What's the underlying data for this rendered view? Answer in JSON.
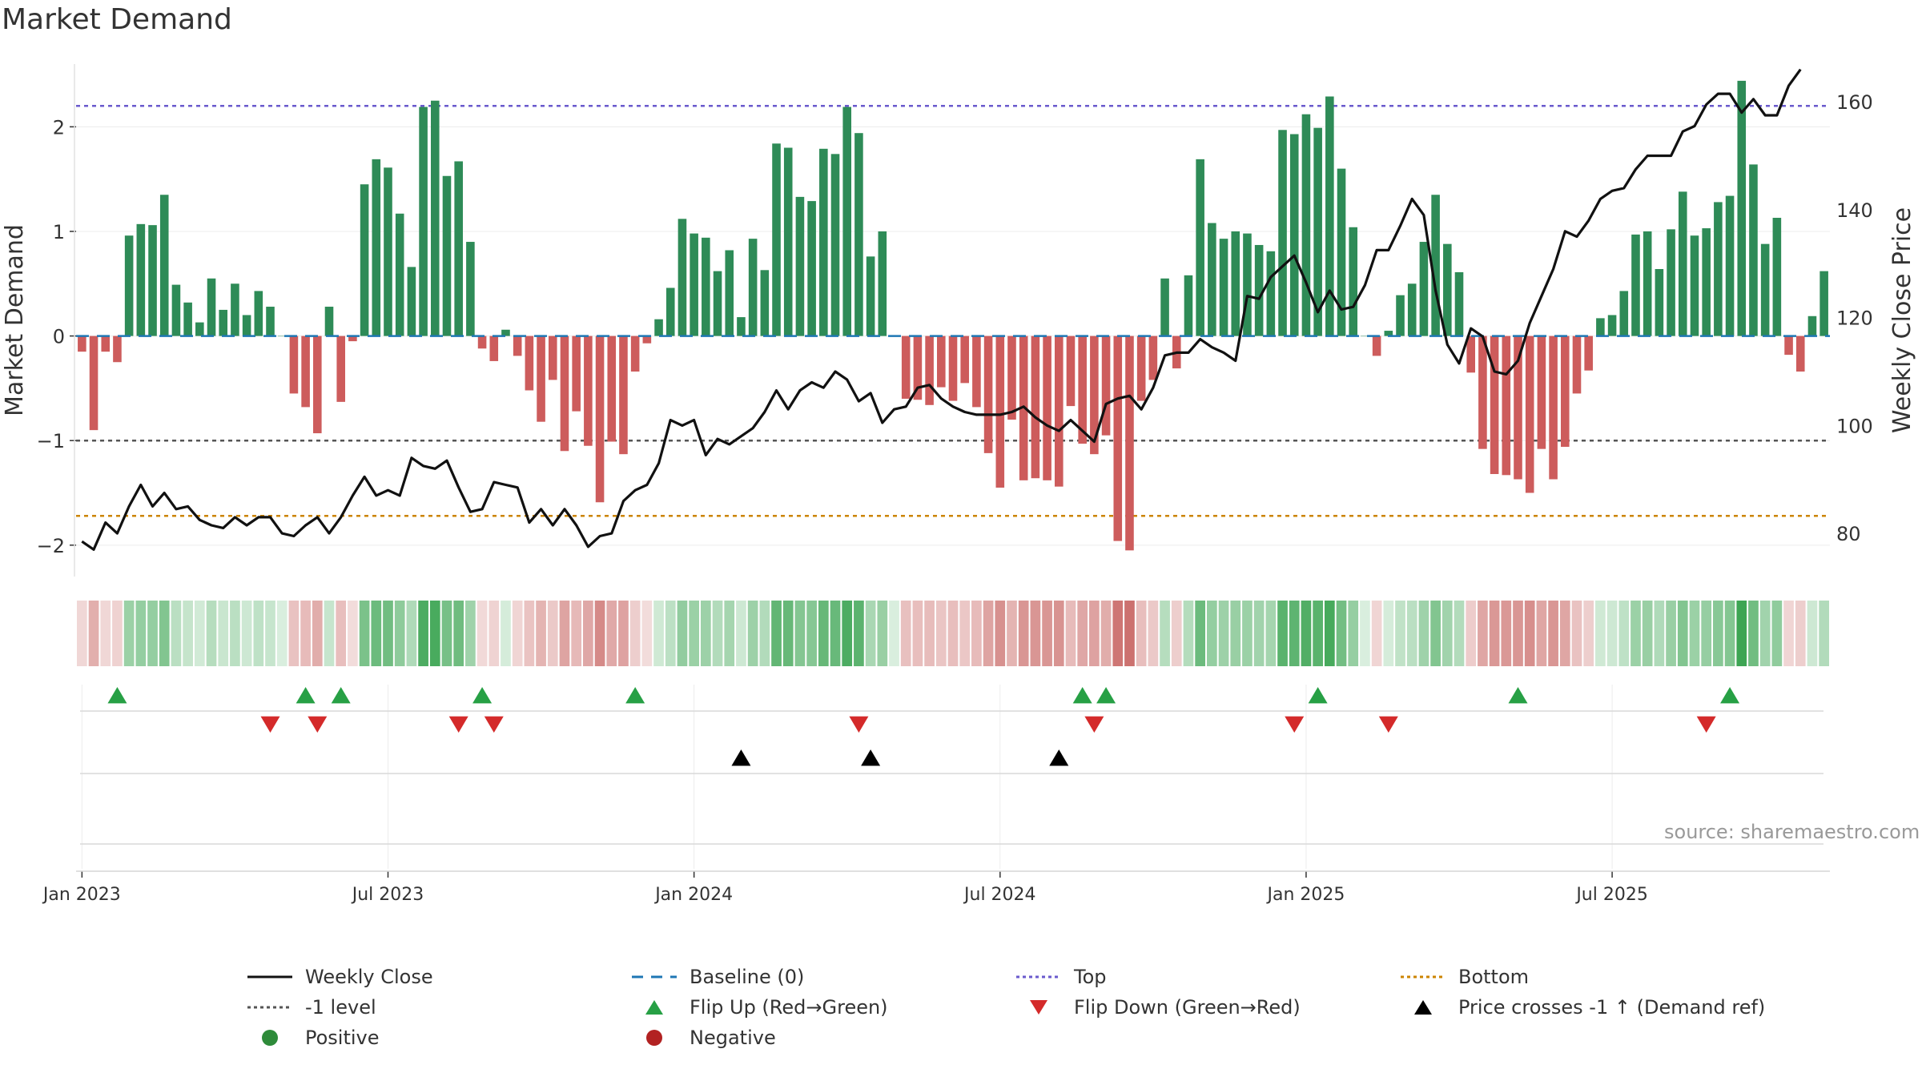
{
  "chart_data": {
    "type": "bar",
    "title": "Market Demand",
    "source": "source: sharemaestro.com",
    "ylabel": "Market Demand",
    "y2label": "Weekly Close Price",
    "ylim": [
      -2.3,
      2.6
    ],
    "y2lim": [
      72,
      167
    ],
    "yticks": [
      -2,
      -1,
      0,
      1,
      2
    ],
    "yticklabels": [
      "−2",
      "−1",
      "0",
      "1",
      "2"
    ],
    "y2ticks": [
      80,
      100,
      120,
      140,
      160
    ],
    "xticks": [
      {
        "week": 1,
        "label": "Jan 2023"
      },
      {
        "week": 27,
        "label": "Jul 2023"
      },
      {
        "week": 53,
        "label": "Jan 2024"
      },
      {
        "week": 79,
        "label": "Jul 2024"
      },
      {
        "week": 105,
        "label": "Jan 2025"
      },
      {
        "week": 131,
        "label": "Jul 2025"
      }
    ],
    "reference_lines": {
      "top": 2.2,
      "bottom": -1.72,
      "minus_one": -1,
      "baseline": 0
    },
    "demand": [
      -0.15,
      -0.9,
      -0.15,
      -0.25,
      0.96,
      1.07,
      1.06,
      1.35,
      0.49,
      0.32,
      0.13,
      0.55,
      0.25,
      0.5,
      0.2,
      0.43,
      0.28,
      0.0,
      -0.55,
      -0.68,
      -0.93,
      0.28,
      -0.63,
      -0.05,
      1.45,
      1.69,
      1.61,
      1.17,
      0.66,
      2.19,
      2.25,
      1.53,
      1.67,
      0.9,
      -0.12,
      -0.24,
      0.06,
      -0.19,
      -0.52,
      -0.82,
      -0.42,
      -1.1,
      -0.72,
      -1.05,
      -1.59,
      -1.01,
      -1.13,
      -0.34,
      -0.07,
      0.16,
      0.46,
      1.12,
      0.98,
      0.94,
      0.62,
      0.82,
      0.18,
      0.93,
      0.63,
      1.84,
      1.8,
      1.33,
      1.29,
      1.79,
      1.74,
      2.19,
      1.94,
      0.76,
      1.0,
      0.0,
      -0.6,
      -0.61,
      -0.66,
      -0.49,
      -0.62,
      -0.45,
      -0.68,
      -1.12,
      -1.45,
      -0.8,
      -1.38,
      -1.36,
      -1.38,
      -1.44,
      -0.67,
      -1.03,
      -1.13,
      -0.95,
      -1.96,
      -2.05,
      -0.62,
      -0.42,
      0.55,
      -0.31,
      0.58,
      1.69,
      1.08,
      0.93,
      1.0,
      0.98,
      0.87,
      0.81,
      1.97,
      1.93,
      2.12,
      1.99,
      2.29,
      1.6,
      1.04,
      0.0,
      -0.19,
      0.05,
      0.39,
      0.5,
      0.9,
      1.35,
      0.88,
      0.61,
      -0.35,
      -1.08,
      -1.32,
      -1.33,
      -1.37,
      -1.5,
      -1.08,
      -1.37,
      -1.06,
      -0.55,
      -0.33,
      0.17,
      0.2,
      0.43,
      0.97,
      1.0,
      0.64,
      1.02,
      1.38,
      0.96,
      1.03,
      1.28,
      1.34,
      2.44,
      1.64,
      0.88,
      1.13,
      -0.18,
      -0.34,
      0.19,
      0.62
    ],
    "weekly_close": [
      78.5,
      77.0,
      82.0,
      80.0,
      85.0,
      89.0,
      85.0,
      87.5,
      84.5,
      85.0,
      82.5,
      81.5,
      81.0,
      83.0,
      81.5,
      83.0,
      83.0,
      80.0,
      79.5,
      81.5,
      83.0,
      80.0,
      83.0,
      87.0,
      90.5,
      87.0,
      88.0,
      87.0,
      94.0,
      92.5,
      92.0,
      93.5,
      88.5,
      84.0,
      84.5,
      89.5,
      89.0,
      88.5,
      82.0,
      84.5,
      81.5,
      84.5,
      81.5,
      77.5,
      79.5,
      80.0,
      86.0,
      88.0,
      89.0,
      93.0,
      101.0,
      100.0,
      101.0,
      94.5,
      97.5,
      96.5,
      98.0,
      99.5,
      102.5,
      106.5,
      103.0,
      106.5,
      108.0,
      107.0,
      110.0,
      108.5,
      104.5,
      106.0,
      100.5,
      103.0,
      103.5,
      107.0,
      107.5,
      105.0,
      103.5,
      102.5,
      102.0,
      102.0,
      102.0,
      102.5,
      103.5,
      101.5,
      100.0,
      99.0,
      101.0,
      99.0,
      97.0,
      104.0,
      105.0,
      105.5,
      103.0,
      107.0,
      113.0,
      113.5,
      113.5,
      116.0,
      114.5,
      113.5,
      112.0,
      124.0,
      123.5,
      127.5,
      129.5,
      131.5,
      126.5,
      121.0,
      125.0,
      121.5,
      122.0,
      126.0,
      132.5,
      132.5,
      137.0,
      142.0,
      139.0,
      125.0,
      115.0,
      111.5,
      118.0,
      116.5,
      110.0,
      109.5,
      112.0,
      119.0,
      124.0,
      129.0,
      136.0,
      135.0,
      138.0,
      142.0,
      143.5,
      144.0,
      147.5,
      150.0,
      150.0,
      150.0,
      154.5,
      155.5,
      159.5,
      161.5,
      161.5,
      158.0,
      160.5,
      157.5,
      157.5,
      163.0,
      166.0
    ],
    "flip_up_weeks": [
      4,
      20,
      23,
      35,
      48,
      86,
      88,
      106,
      123,
      141
    ],
    "flip_down_weeks": [
      17,
      21,
      33,
      36,
      67,
      87,
      104,
      112,
      139
    ],
    "price_cross_weeks": [
      57,
      68,
      84
    ],
    "legend": [
      {
        "label": "Weekly Close",
        "type": "line",
        "color": "#111111"
      },
      {
        "label": "Baseline (0)",
        "type": "dash",
        "color": "#1f77b4"
      },
      {
        "label": "Top",
        "type": "dot",
        "color": "#6a5acd"
      },
      {
        "label": "Bottom",
        "type": "dot",
        "color": "#cc8400"
      },
      {
        "label": "-1 level",
        "type": "dot",
        "color": "#555555"
      },
      {
        "label": "Flip Up (Red→Green)",
        "type": "tri-up",
        "color": "#27a045"
      },
      {
        "label": "Flip Down (Green→Red)",
        "type": "tri-down",
        "color": "#d42a2a"
      },
      {
        "label": "Price crosses -1 ↑ (Demand ref)",
        "type": "tri-up",
        "color": "#000000"
      },
      {
        "label": "Positive",
        "type": "circle",
        "color": "#2e8b3a"
      },
      {
        "label": "Negative",
        "type": "circle",
        "color": "#b22222"
      }
    ],
    "colors": {
      "positive": "#2e8b57",
      "negative": "#cd5c5c",
      "heat_positive": "#2e9e46",
      "heat_negative": "#c0504d"
    }
  }
}
